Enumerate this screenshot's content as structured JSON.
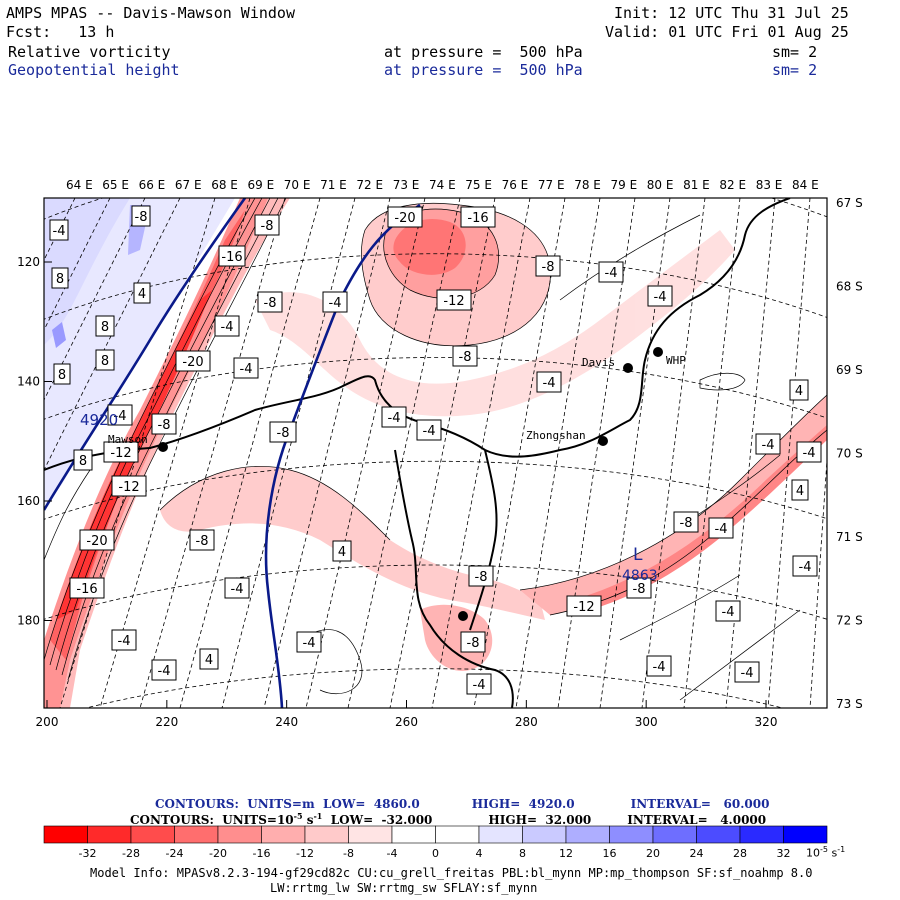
{
  "header": {
    "title": "AMPS MPAS -- Davis-Mawson Window",
    "init": "Init: 12 UTC Thu 31 Jul 25",
    "forecast": "Fcst:   13 h",
    "valid": "Valid: 01 UTC Fri 01 Aug 25",
    "field1": "Relative vorticity",
    "field1_level": "at pressure =  500 hPa",
    "field1_sm": "sm= 2",
    "field2": "Geopotential height",
    "field2_level": "at pressure =  500 hPa",
    "field2_sm": "sm= 2"
  },
  "map": {
    "lon_labels": [
      "64 E",
      "65 E",
      "66 E",
      "67 E",
      "68 E",
      "69 E",
      "70 E",
      "71 E",
      "72 E",
      "73 E",
      "74 E",
      "75 E",
      "76 E",
      "77 E",
      "78 E",
      "79 E",
      "80 E",
      "81 E",
      "82 E",
      "83 E",
      "84 E"
    ],
    "lat_labels": [
      "67 S",
      "68 S",
      "69 S",
      "70 S",
      "71 S",
      "72 S",
      "73 S"
    ],
    "x_ticks": [
      "200",
      "220",
      "240",
      "260",
      "280",
      "300",
      "320"
    ],
    "y_ticks": [
      "120",
      "140",
      "160",
      "180"
    ],
    "stations": [
      {
        "name": "Davis"
      },
      {
        "name": "WHP"
      },
      {
        "name": "Zhongshan"
      },
      {
        "name": "Mawson"
      }
    ],
    "height_label": "4920",
    "low_label": "L",
    "low_value": "4863",
    "contour_labels": [
      "-4",
      "-8",
      "-12",
      "-16",
      "-20",
      "4",
      "8"
    ],
    "colors": {
      "neg_strong": "#ff2020",
      "pos": "#2020ff",
      "height_line": "#0a1a8a"
    }
  },
  "legend": {
    "line1_a": "CONTOURS:  UNITS=m  LOW=  4860.0",
    "line1_b": "HIGH=  4920.0",
    "line1_c": "INTERVAL=   60.000",
    "line2_a": "CONTOURS:  UNITS=10",
    "line2_exp": "-5",
    "line2_s": " s",
    "line2_sexp": "-1",
    "line2_b": "  LOW=  -32.000",
    "line2_c": "HIGH=  32.000",
    "line2_d": "INTERVAL=   4.0000"
  },
  "colorbar": {
    "labels": [
      "-32",
      "-28",
      "-24",
      "-20",
      "-16",
      "-12",
      "-8",
      "-4",
      "0",
      "4",
      "8",
      "12",
      "16",
      "20",
      "24",
      "28",
      "32"
    ],
    "units": "10",
    "units_exp": "-5",
    "units_s": " s",
    "units_sexp": "-1",
    "colors": [
      "#ff0000",
      "#ff2a2a",
      "#ff4c4c",
      "#ff6e6e",
      "#ff8e8e",
      "#ffaeae",
      "#ffcaca",
      "#ffe4e4",
      "#ffffff",
      "#ffffff",
      "#e4e4ff",
      "#cacaff",
      "#aeaeff",
      "#8e8eff",
      "#6e6eff",
      "#4c4cff",
      "#2a2aff",
      "#0000ff"
    ]
  },
  "footer": {
    "line1": "Model Info: MPASv8.2.3-194-gf29cd82c CU:cu_grell_freitas PBL:bl_mynn MP:mp_thompson SF:sf_noahmp 8.0",
    "line2": "LW:rrtmg_lw SW:rrtmg_sw SFLAY:sf_mynn"
  }
}
